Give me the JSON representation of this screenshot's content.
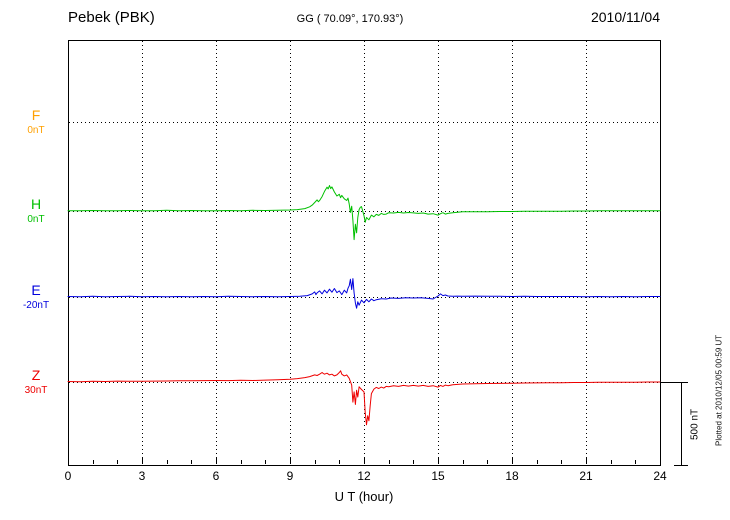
{
  "header": {
    "station": "Pebek (PBK)",
    "coords": "GG ( 70.09°, 170.93°)",
    "date": "2010/11/04"
  },
  "axes": {
    "xlabel": "U T (hour)",
    "xmin": 0,
    "xmax": 24,
    "xticks": [
      0,
      3,
      6,
      9,
      12,
      15,
      18,
      21,
      24
    ]
  },
  "scalebar": {
    "label": "500 nT",
    "nT": 500
  },
  "plot_note": "Plotted at 2010/12/05 00:59 UT",
  "chart_data": {
    "type": "line",
    "title": "Pebek (PBK) magnetogram 2010/11/04",
    "xlabel": "U T (hour)",
    "x_range": [
      0,
      24
    ],
    "grid": "dotted",
    "scale_bar_nT": 500,
    "series": [
      {
        "name": "F",
        "offset_label": "0nT",
        "color": "#FFA000",
        "points": []
      },
      {
        "name": "H",
        "offset_label": "0nT",
        "color": "#00C000",
        "points": [
          [
            0,
            2
          ],
          [
            0.5,
            1
          ],
          [
            1,
            3
          ],
          [
            1.5,
            1
          ],
          [
            2,
            2
          ],
          [
            2.5,
            3
          ],
          [
            3,
            1
          ],
          [
            3.5,
            2
          ],
          [
            4,
            4
          ],
          [
            4.5,
            2
          ],
          [
            5,
            3
          ],
          [
            5.5,
            1
          ],
          [
            6,
            2
          ],
          [
            6.5,
            3
          ],
          [
            7,
            2
          ],
          [
            7.5,
            4
          ],
          [
            8,
            3
          ],
          [
            8.5,
            5
          ],
          [
            9,
            6
          ],
          [
            9.3,
            8
          ],
          [
            9.6,
            14
          ],
          [
            9.8,
            25
          ],
          [
            9.9,
            35
          ],
          [
            10,
            50
          ],
          [
            10.1,
            65
          ],
          [
            10.15,
            55
          ],
          [
            10.2,
            62
          ],
          [
            10.3,
            85
          ],
          [
            10.4,
            115
          ],
          [
            10.5,
            140
          ],
          [
            10.55,
            130
          ],
          [
            10.6,
            150
          ],
          [
            10.65,
            132
          ],
          [
            10.7,
            142
          ],
          [
            10.8,
            112
          ],
          [
            10.9,
            88
          ],
          [
            11,
            98
          ],
          [
            11.05,
            78
          ],
          [
            11.1,
            92
          ],
          [
            11.2,
            72
          ],
          [
            11.3,
            62
          ],
          [
            11.35,
            76
          ],
          [
            11.4,
            42
          ],
          [
            11.45,
            -8
          ],
          [
            11.5,
            28
          ],
          [
            11.55,
            -55
          ],
          [
            11.6,
            -168
          ],
          [
            11.65,
            -78
          ],
          [
            11.7,
            -128
          ],
          [
            11.75,
            -38
          ],
          [
            11.8,
            8
          ],
          [
            11.85,
            22
          ],
          [
            11.9,
            26
          ],
          [
            12,
            -28
          ],
          [
            12.05,
            -66
          ],
          [
            12.1,
            -38
          ],
          [
            12.2,
            -52
          ],
          [
            12.3,
            -24
          ],
          [
            12.4,
            -34
          ],
          [
            12.5,
            -20
          ],
          [
            12.6,
            -26
          ],
          [
            12.7,
            -14
          ],
          [
            12.8,
            -20
          ],
          [
            12.9,
            -18
          ],
          [
            13,
            -10
          ],
          [
            13.2,
            -12
          ],
          [
            13.4,
            -8
          ],
          [
            13.6,
            -12
          ],
          [
            13.8,
            -9
          ],
          [
            14,
            -11
          ],
          [
            14.2,
            -14
          ],
          [
            14.4,
            -12
          ],
          [
            14.6,
            -18
          ],
          [
            14.8,
            -16
          ],
          [
            15,
            -24
          ],
          [
            15.1,
            -16
          ],
          [
            15.2,
            -10
          ],
          [
            15.3,
            -18
          ],
          [
            15.4,
            -14
          ],
          [
            15.6,
            -10
          ],
          [
            15.8,
            -7
          ],
          [
            16,
            -5
          ],
          [
            16.5,
            -4
          ],
          [
            17,
            -4
          ],
          [
            17.5,
            -3
          ],
          [
            18,
            -3
          ],
          [
            18.5,
            -2
          ],
          [
            19,
            -2
          ],
          [
            19.5,
            -1
          ],
          [
            20,
            -1
          ],
          [
            20.5,
            0
          ],
          [
            21,
            0
          ],
          [
            21.5,
            1
          ],
          [
            22,
            1
          ],
          [
            22.5,
            1
          ],
          [
            23,
            2
          ],
          [
            23.5,
            2
          ],
          [
            24,
            2
          ]
        ]
      },
      {
        "name": "E",
        "offset_label": "-20nT",
        "color": "#0000DD",
        "points": [
          [
            0,
            3
          ],
          [
            0.5,
            2
          ],
          [
            1,
            4
          ],
          [
            1.5,
            2
          ],
          [
            2,
            3
          ],
          [
            2.5,
            4
          ],
          [
            3,
            2
          ],
          [
            3.5,
            3
          ],
          [
            4,
            2
          ],
          [
            4.5,
            3
          ],
          [
            5,
            2
          ],
          [
            5.5,
            3
          ],
          [
            6,
            2
          ],
          [
            6.5,
            4
          ],
          [
            7,
            3
          ],
          [
            7.5,
            2
          ],
          [
            8,
            3
          ],
          [
            8.5,
            2
          ],
          [
            9,
            3
          ],
          [
            9.4,
            4
          ],
          [
            9.7,
            8
          ],
          [
            9.9,
            18
          ],
          [
            10,
            30
          ],
          [
            10.05,
            14
          ],
          [
            10.1,
            24
          ],
          [
            10.2,
            36
          ],
          [
            10.3,
            18
          ],
          [
            10.4,
            40
          ],
          [
            10.5,
            24
          ],
          [
            10.6,
            46
          ],
          [
            10.7,
            28
          ],
          [
            10.8,
            50
          ],
          [
            10.9,
            26
          ],
          [
            11,
            36
          ],
          [
            11.1,
            14
          ],
          [
            11.2,
            40
          ],
          [
            11.3,
            24
          ],
          [
            11.35,
            52
          ],
          [
            11.4,
            66
          ],
          [
            11.45,
            104
          ],
          [
            11.5,
            44
          ],
          [
            11.55,
            108
          ],
          [
            11.6,
            24
          ],
          [
            11.65,
            -36
          ],
          [
            11.7,
            -66
          ],
          [
            11.75,
            -28
          ],
          [
            11.8,
            -48
          ],
          [
            11.9,
            -18
          ],
          [
            12,
            -34
          ],
          [
            12.1,
            -14
          ],
          [
            12.2,
            -28
          ],
          [
            12.3,
            -12
          ],
          [
            12.4,
            -22
          ],
          [
            12.5,
            -16
          ],
          [
            12.7,
            -10
          ],
          [
            12.9,
            -12
          ],
          [
            13.1,
            -6
          ],
          [
            13.4,
            -8
          ],
          [
            13.7,
            -4
          ],
          [
            14,
            -6
          ],
          [
            14.3,
            -4
          ],
          [
            14.6,
            -8
          ],
          [
            14.8,
            -12
          ],
          [
            15,
            6
          ],
          [
            15.1,
            18
          ],
          [
            15.2,
            8
          ],
          [
            15.3,
            12
          ],
          [
            15.4,
            6
          ],
          [
            15.6,
            4
          ],
          [
            15.8,
            5
          ],
          [
            16,
            4
          ],
          [
            16.5,
            5
          ],
          [
            17,
            4
          ],
          [
            17.5,
            4
          ],
          [
            18,
            3
          ],
          [
            18.5,
            4
          ],
          [
            19,
            3
          ],
          [
            19.5,
            3
          ],
          [
            20,
            3
          ],
          [
            20.5,
            3
          ],
          [
            21,
            2
          ],
          [
            21.5,
            3
          ],
          [
            22,
            2
          ],
          [
            22.5,
            3
          ],
          [
            23,
            2
          ],
          [
            23.5,
            3
          ],
          [
            24,
            3
          ]
        ]
      },
      {
        "name": "Z",
        "offset_label": "30nT",
        "color": "#EE0000",
        "points": [
          [
            0,
            3
          ],
          [
            0.5,
            2
          ],
          [
            1,
            4
          ],
          [
            1.5,
            3
          ],
          [
            2,
            5
          ],
          [
            2.5,
            4
          ],
          [
            3,
            4
          ],
          [
            3.5,
            5
          ],
          [
            4,
            6
          ],
          [
            4.5,
            7
          ],
          [
            5,
            7
          ],
          [
            5.5,
            8
          ],
          [
            6,
            9
          ],
          [
            6.5,
            8
          ],
          [
            7,
            10
          ],
          [
            7.5,
            9
          ],
          [
            8,
            11
          ],
          [
            8.5,
            13
          ],
          [
            9,
            16
          ],
          [
            9.3,
            20
          ],
          [
            9.6,
            26
          ],
          [
            9.8,
            32
          ],
          [
            10,
            42
          ],
          [
            10.1,
            38
          ],
          [
            10.2,
            46
          ],
          [
            10.3,
            56
          ],
          [
            10.35,
            50
          ],
          [
            10.4,
            46
          ],
          [
            10.5,
            52
          ],
          [
            10.6,
            42
          ],
          [
            10.7,
            46
          ],
          [
            10.8,
            36
          ],
          [
            10.9,
            42
          ],
          [
            11,
            56
          ],
          [
            11.05,
            66
          ],
          [
            11.1,
            46
          ],
          [
            11.2,
            36
          ],
          [
            11.3,
            42
          ],
          [
            11.4,
            22
          ],
          [
            11.5,
            -18
          ],
          [
            11.55,
            -118
          ],
          [
            11.6,
            -58
          ],
          [
            11.65,
            -132
          ],
          [
            11.7,
            -48
          ],
          [
            11.75,
            -88
          ],
          [
            11.8,
            -28
          ],
          [
            11.9,
            -44
          ],
          [
            12,
            -58
          ],
          [
            12.05,
            -178
          ],
          [
            12.1,
            -252
          ],
          [
            12.15,
            -198
          ],
          [
            12.2,
            -228
          ],
          [
            12.25,
            -138
          ],
          [
            12.3,
            -68
          ],
          [
            12.4,
            -42
          ],
          [
            12.5,
            -32
          ],
          [
            12.6,
            -38
          ],
          [
            12.7,
            -30
          ],
          [
            12.8,
            -36
          ],
          [
            12.9,
            -26
          ],
          [
            13,
            -28
          ],
          [
            13.2,
            -22
          ],
          [
            13.4,
            -26
          ],
          [
            13.6,
            -20
          ],
          [
            13.8,
            -24
          ],
          [
            14,
            -20
          ],
          [
            14.2,
            -24
          ],
          [
            14.4,
            -20
          ],
          [
            14.6,
            -26
          ],
          [
            14.8,
            -22
          ],
          [
            15,
            -30
          ],
          [
            15.1,
            -20
          ],
          [
            15.2,
            -26
          ],
          [
            15.3,
            -18
          ],
          [
            15.4,
            -22
          ],
          [
            15.6,
            -16
          ],
          [
            15.8,
            -14
          ],
          [
            16,
            -12
          ],
          [
            16.5,
            -10
          ],
          [
            17,
            -9
          ],
          [
            17.5,
            -8
          ],
          [
            18,
            -7
          ],
          [
            18.5,
            -6
          ],
          [
            19,
            -5
          ],
          [
            19.5,
            -4
          ],
          [
            20,
            -4
          ],
          [
            20.5,
            -3
          ],
          [
            21,
            -3
          ],
          [
            21.5,
            -2
          ],
          [
            22,
            -2
          ],
          [
            22.5,
            -1
          ],
          [
            23,
            -1
          ],
          [
            23.5,
            0
          ],
          [
            24,
            0
          ]
        ]
      }
    ]
  }
}
